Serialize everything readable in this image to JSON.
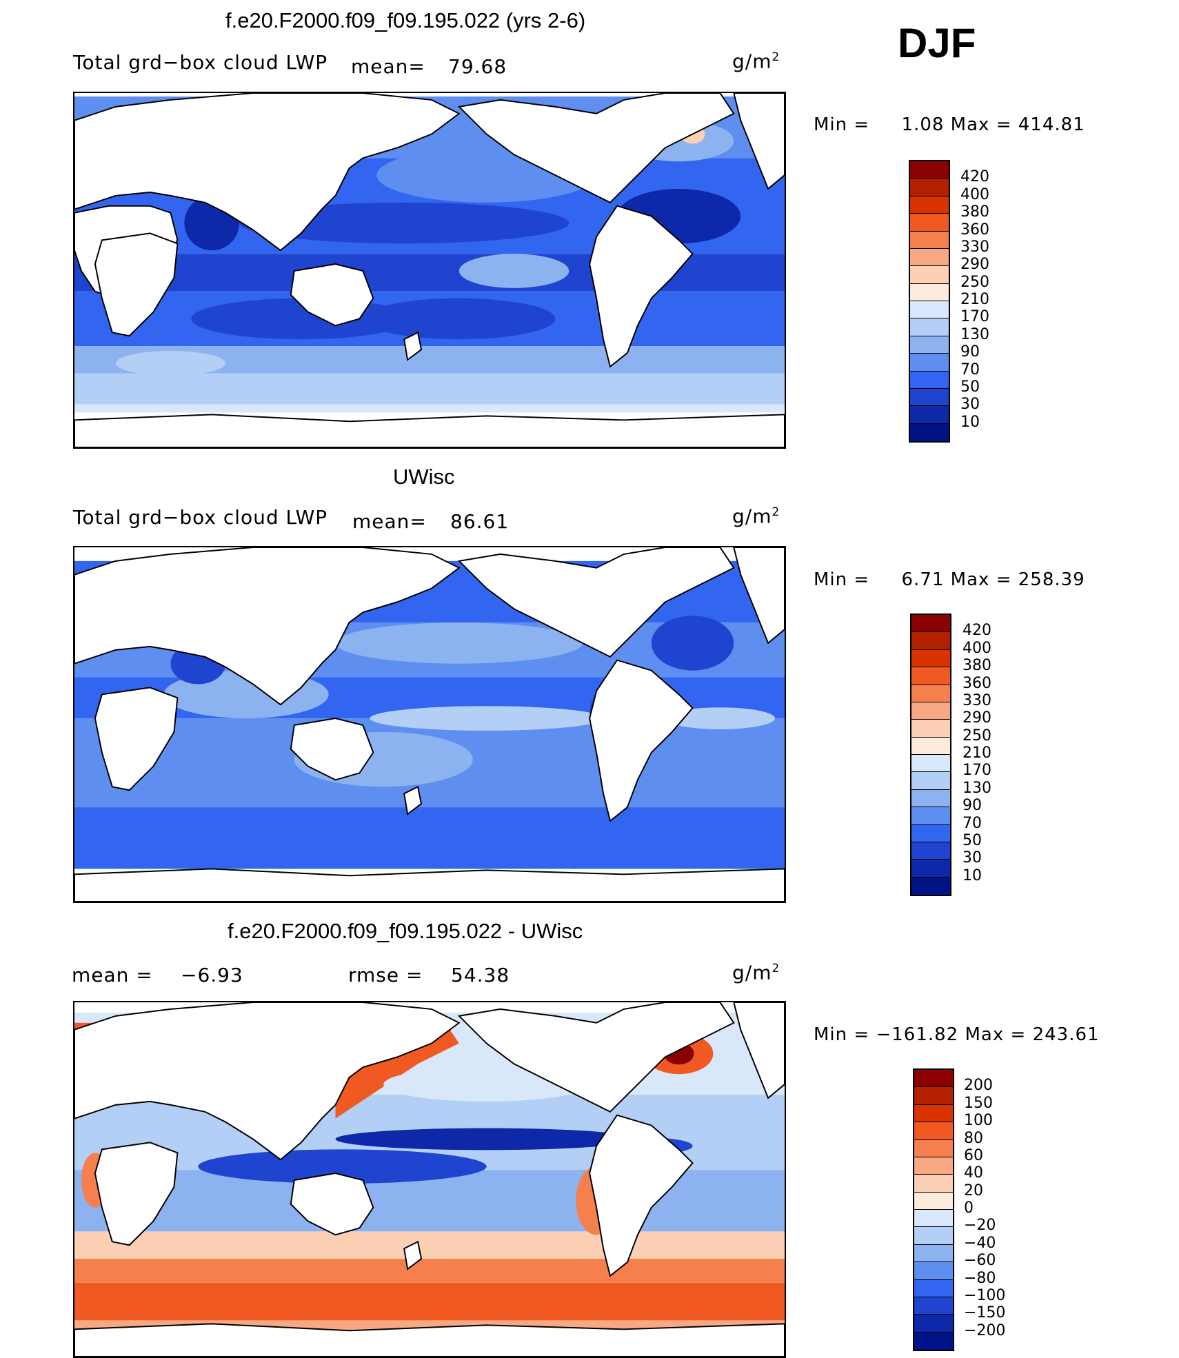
{
  "season": "DJF",
  "units_base": "g/m",
  "units_exp": "2",
  "panels": [
    {
      "title": "f.e20.F2000.f09_f09.195.022 (yrs 2-6)",
      "variable": "Total grd−box cloud LWP",
      "mean_label": "mean=",
      "mean_value": "79.68",
      "min_label": "Min  =",
      "min_value": "1.08",
      "max_label": "Max  =",
      "max_value": "414.81",
      "colorbar_labels": [
        "420",
        "400",
        "380",
        "360",
        "330",
        "290",
        "250",
        "210",
        "170",
        "130",
        "90",
        "70",
        "50",
        "30",
        "10"
      ],
      "colorbar_colors": [
        "#8b0000",
        "#b22000",
        "#d93300",
        "#f05a22",
        "#f5804d",
        "#f8a882",
        "#fbd0b5",
        "#fdecdc",
        "#d8e8fa",
        "#b4cff5",
        "#8cb3f0",
        "#5e8ff0",
        "#3366f0",
        "#1f44d0",
        "#0d28a8",
        "#001488"
      ]
    },
    {
      "title": "UWisc",
      "variable": "Total grd−box cloud LWP",
      "mean_label": "mean=",
      "mean_value": "86.61",
      "min_label": "Min  =",
      "min_value": "6.71",
      "max_label": "Max  =",
      "max_value": "258.39",
      "colorbar_labels": [
        "420",
        "400",
        "380",
        "360",
        "330",
        "290",
        "250",
        "210",
        "170",
        "130",
        "90",
        "70",
        "50",
        "30",
        "10"
      ],
      "colorbar_colors": [
        "#8b0000",
        "#b22000",
        "#d93300",
        "#f05a22",
        "#f5804d",
        "#f8a882",
        "#fbd0b5",
        "#fdecdc",
        "#d8e8fa",
        "#b4cff5",
        "#8cb3f0",
        "#5e8ff0",
        "#3366f0",
        "#1f44d0",
        "#0d28a8",
        "#001488"
      ]
    },
    {
      "title": "f.e20.F2000.f09_f09.195.022 - UWisc",
      "mean_label": "mean  =",
      "mean_value": "−6.93",
      "rmse_label": "rmse  =",
      "rmse_value": "54.38",
      "min_label": "Min  =",
      "min_value": "−161.82",
      "max_label": "Max  =",
      "max_value": "243.61",
      "colorbar_labels": [
        "200",
        "150",
        "100",
        "80",
        "60",
        "40",
        "20",
        "0",
        "−20",
        "−40",
        "−60",
        "−80",
        "−100",
        "−150",
        "−200"
      ],
      "colorbar_colors": [
        "#8b0000",
        "#b22000",
        "#d93300",
        "#f05a22",
        "#f5804d",
        "#f8a882",
        "#fbd0b5",
        "#fdecdc",
        "#d8e8fa",
        "#b4cff5",
        "#8cb3f0",
        "#5e8ff0",
        "#3366f0",
        "#1f44d0",
        "#0d28a8",
        "#001488"
      ]
    }
  ]
}
